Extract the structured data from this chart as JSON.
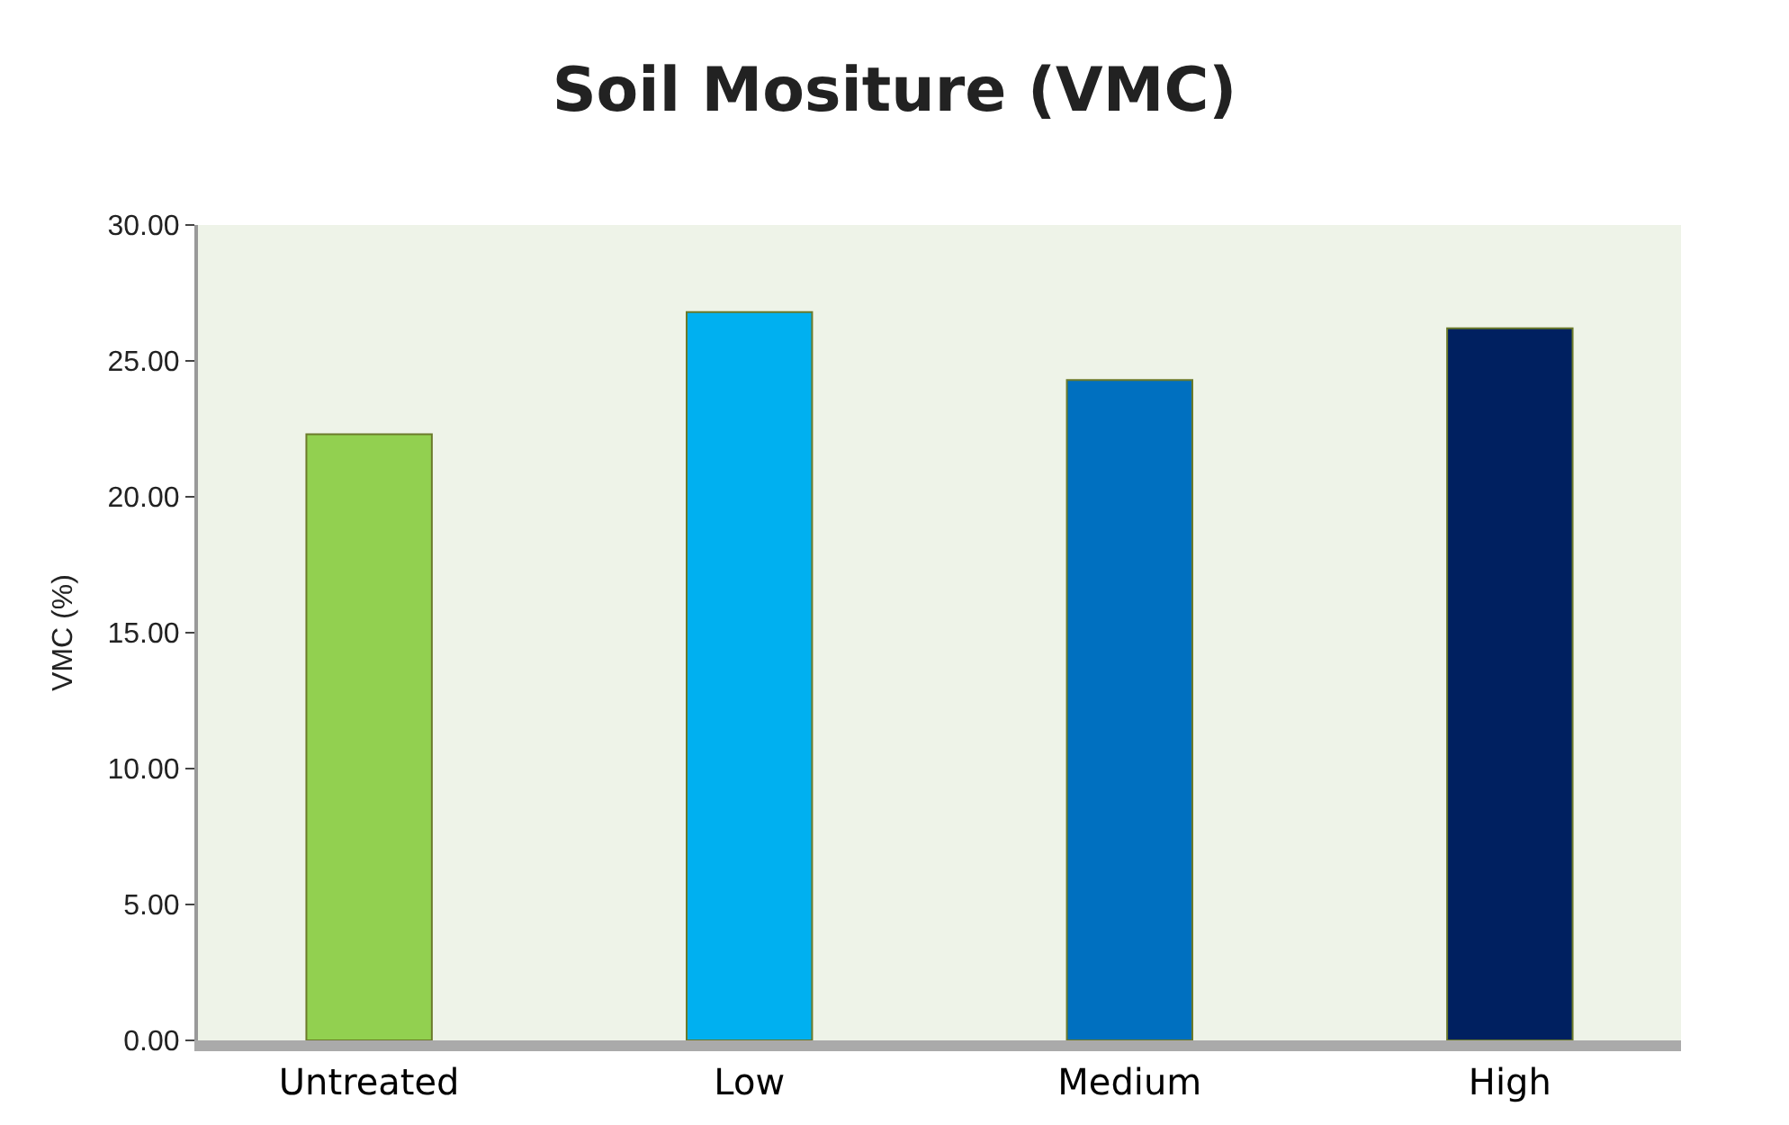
{
  "chart_data": {
    "type": "bar",
    "title": "Soil Mositure (VMC)",
    "ylabel": "VMC (%)",
    "categories": [
      "Untreated",
      "Low",
      "Medium",
      "High"
    ],
    "values": [
      22.3,
      26.8,
      24.3,
      26.2
    ],
    "colors": [
      "#92d050",
      "#00b0f0",
      "#0070c0",
      "#002060"
    ],
    "ylim": [
      0,
      30
    ],
    "yticks": [
      {
        "value": 0,
        "label": "0.00"
      },
      {
        "value": 5,
        "label": "5.00"
      },
      {
        "value": 10,
        "label": "10.00"
      },
      {
        "value": 15,
        "label": "15.00"
      },
      {
        "value": 20,
        "label": "20.00"
      },
      {
        "value": 25,
        "label": "25.00"
      },
      {
        "value": 30,
        "label": "30.00"
      }
    ],
    "grid": false
  }
}
